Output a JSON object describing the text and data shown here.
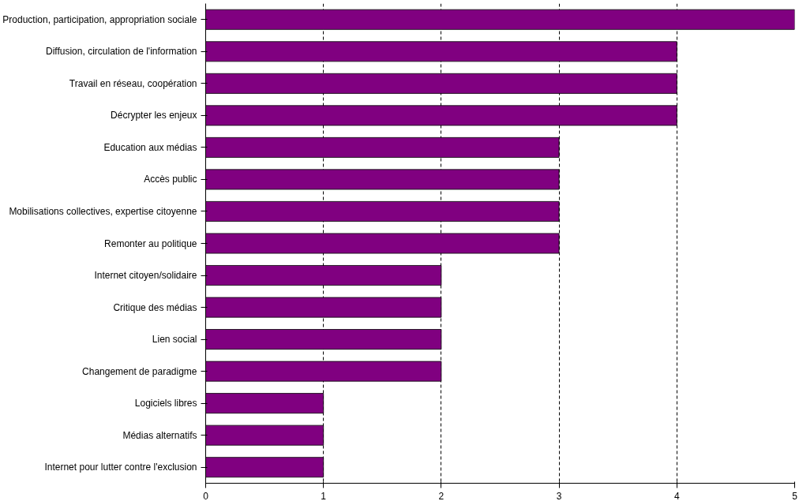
{
  "chart_data": {
    "type": "bar",
    "orientation": "horizontal",
    "categories": [
      "Production, participation, appropriation sociale",
      "Diffusion, circulation de l'information",
      "Travail en réseau, coopération",
      "Décrypter les enjeux",
      "Education aux médias",
      "Accès public",
      "Mobilisations collectives, expertise citoyenne",
      "Remonter au politique",
      "Internet citoyen/solidaire",
      "Critique des médias",
      "Lien social",
      "Changement de paradigme",
      "Logiciels libres",
      "Médias alternatifs",
      "Internet pour lutter contre l'exclusion"
    ],
    "values": [
      5,
      4,
      4,
      4,
      3,
      3,
      3,
      3,
      2,
      2,
      2,
      2,
      1,
      1,
      1
    ],
    "color": "#800080",
    "xlim": [
      0,
      5
    ],
    "xticks": [
      0,
      1,
      2,
      3,
      4,
      5
    ],
    "grid": "x"
  }
}
